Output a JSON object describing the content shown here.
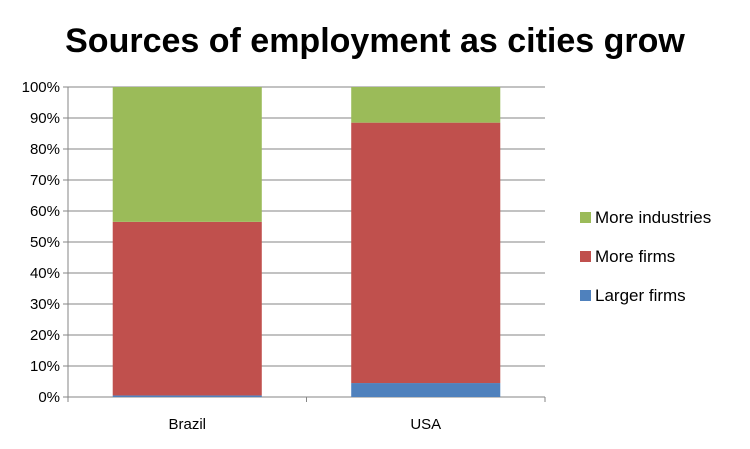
{
  "chart_data": {
    "type": "bar",
    "stacked": true,
    "title": "Sources of employment as cities grow",
    "xlabel": "",
    "ylabel": "",
    "categories": [
      "Brazil",
      "USA"
    ],
    "series": [
      {
        "name": "Larger firms",
        "values": [
          0.5,
          4.5
        ],
        "color": "#4f81bd"
      },
      {
        "name": "More firms",
        "values": [
          56.0,
          84.0
        ],
        "color": "#c0504d"
      },
      {
        "name": "More industries",
        "values": [
          43.5,
          11.5
        ],
        "color": "#9bbb59"
      }
    ],
    "ylim": [
      0,
      100
    ],
    "yticks": [
      "0%",
      "10%",
      "20%",
      "30%",
      "40%",
      "50%",
      "60%",
      "70%",
      "80%",
      "90%",
      "100%"
    ],
    "grid": true,
    "legend_position": "right"
  }
}
